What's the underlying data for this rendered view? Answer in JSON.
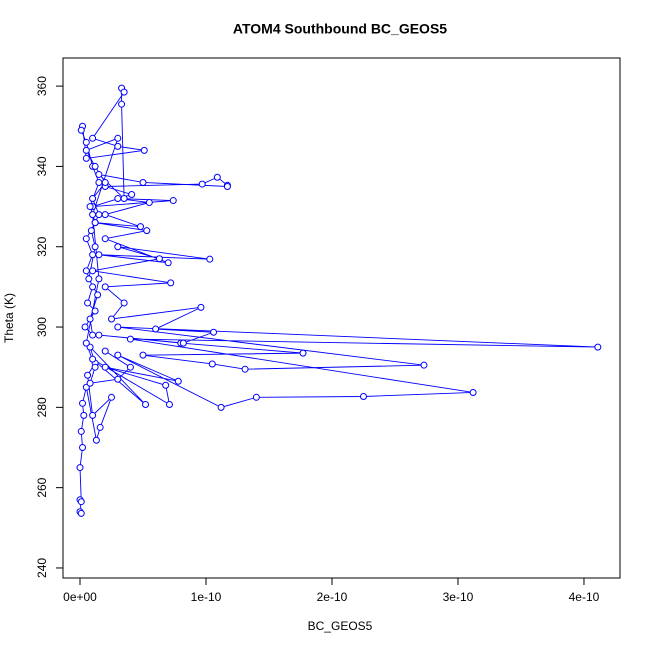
{
  "chart_data": {
    "type": "line",
    "markers": true,
    "title": "ATOM4 Southbound BC_GEOS5",
    "x_label": "BC_GEOS5",
    "y_label": "Theta (K)",
    "color": "#0000ff",
    "x": [
      0,
      1e-12,
      0,
      1e-12,
      0,
      2e-12,
      1e-12,
      3e-12,
      2e-12,
      5e-12,
      1.3e-11,
      1.6e-11,
      2.5e-11,
      1e-11,
      6e-12,
      1.2e-11,
      8e-12,
      5.2e-11,
      1e-11,
      7.1e-11,
      6.8e-11,
      2e-11,
      7.8e-11,
      3e-11,
      1.12e-10,
      1.4e-10,
      2.25e-10,
      3.12e-10,
      4e-11,
      4.11e-10,
      3e-11,
      2.73e-10,
      1.31e-10,
      1.05e-10,
      5e-11,
      1.77e-10,
      8e-11,
      1.5e-11,
      8.2e-11,
      1.06e-10,
      6e-11,
      9.6e-11,
      2.5e-11,
      3.5e-11,
      2e-11,
      7.2e-11,
      1e-11,
      6.3e-11,
      3e-11,
      1.03e-10,
      1.5e-11,
      7e-11,
      2e-11,
      5.3e-11,
      1.2e-11,
      4.8e-11,
      2e-11,
      5.5e-11,
      3e-11,
      7.4e-11,
      1e-11,
      4.1e-11,
      2e-11,
      9.7e-11,
      1.09e-10,
      1.17e-10,
      1.17e-10,
      5e-11,
      1.5e-11,
      3.5e-11,
      3.3e-11,
      3.3e-11,
      3.5e-11,
      1e-11,
      3e-11,
      5.1e-11,
      5e-12,
      2e-12,
      1e-12,
      5e-12,
      1e-11,
      1.5e-11,
      8e-12,
      1.2e-11,
      5e-12,
      1e-11,
      5e-12,
      1e-11,
      6e-12,
      1.2e-11,
      4e-12,
      1e-11,
      8e-12,
      1.4e-11,
      7e-12,
      1.2e-11,
      9e-12,
      1.5e-11,
      1e-11,
      2e-11,
      1.2e-11,
      5e-12,
      3e-11,
      1e-11,
      1.5e-11,
      5e-12,
      1.2e-11,
      8e-12,
      3e-11,
      4e-11,
      2e-11
    ],
    "values": [
      254.0,
      253.6,
      257,
      256.5,
      265,
      270,
      274,
      278,
      281,
      285,
      271.8,
      275,
      282.5,
      278,
      288,
      291,
      295,
      280.7,
      292,
      280.7,
      285.5,
      290,
      286.5,
      293,
      280.0,
      282.5,
      282.7,
      283.7,
      297,
      295.0,
      300,
      290.5,
      289.5,
      290.8,
      293,
      293.5,
      296,
      298,
      296,
      298.7,
      299.5,
      304.9,
      302,
      306,
      310,
      311,
      314,
      317,
      320,
      316.9,
      318,
      316,
      322,
      324,
      326,
      325,
      328,
      331,
      332,
      331.5,
      330,
      333,
      335,
      335.6,
      337.3,
      335.3,
      335.0,
      336,
      338,
      332,
      355.5,
      359.5,
      358.5,
      347,
      345,
      344,
      342,
      350,
      349,
      346,
      340,
      336,
      330,
      326,
      322,
      318,
      314,
      310,
      306,
      304,
      300,
      298,
      302,
      308,
      312,
      320,
      324,
      328,
      332,
      336,
      340,
      344,
      347,
      328,
      312,
      296,
      290,
      286,
      287,
      290,
      294
    ],
    "xlim": [
      -1.35e-11,
      4.286e-10
    ],
    "ylim": [
      237.5,
      367
    ],
    "xticks": [
      {
        "value": 0,
        "label": "0e+00"
      },
      {
        "value": 1e-10,
        "label": "1e-10"
      },
      {
        "value": 2e-10,
        "label": "2e-10"
      },
      {
        "value": 3e-10,
        "label": "3e-10"
      },
      {
        "value": 4e-10,
        "label": "4e-10"
      }
    ],
    "yticks": [
      240,
      260,
      280,
      300,
      320,
      340,
      360
    ]
  }
}
